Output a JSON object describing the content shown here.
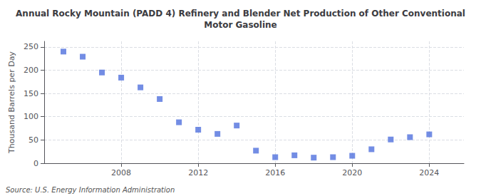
{
  "chart_data": {
    "type": "scatter",
    "title": "Annual Rocky Mountain (PADD 4) Refinery and Blender Net Production of Other Conventional\nMotor Gasoline",
    "ylabel": "Thousand Barrels per Day",
    "source": "Source: U.S. Energy Information Administration",
    "x": [
      2005,
      2006,
      2007,
      2008,
      2009,
      2010,
      2011,
      2012,
      2013,
      2014,
      2015,
      2016,
      2017,
      2018,
      2019,
      2020,
      2021,
      2022,
      2023,
      2024
    ],
    "values": [
      240,
      229,
      195,
      184,
      163,
      138,
      88,
      72,
      63,
      81,
      27,
      13,
      17,
      12,
      13,
      16,
      30,
      51,
      56,
      62
    ],
    "marker": "square",
    "xlim": [
      2004.0,
      2025.8
    ],
    "xticks": [
      2008,
      2012,
      2016,
      2020,
      2024
    ],
    "ylim": [
      0,
      262
    ],
    "yticks": [
      0,
      50,
      100,
      150,
      200,
      250
    ],
    "grid": true
  }
}
